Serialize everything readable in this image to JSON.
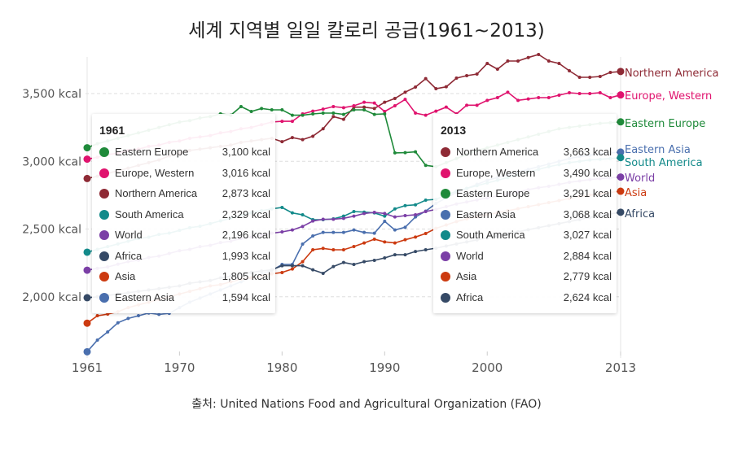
{
  "title": "세계 지역별 일일 칼로리 공급(1961~2013)",
  "source": "출처: United Nations Food and Agricultural Organization (FAO)",
  "chart_data": {
    "type": "line",
    "title": "세계 지역별 일일 칼로리 공급(1961~2013)",
    "xlabel": "",
    "ylabel": "",
    "x_start": 1961,
    "x_end": 2013,
    "x_ticks": [
      "1961",
      "1970",
      "1980",
      "1990",
      "2000",
      "2013"
    ],
    "y_ticks": [
      "2,000 kcal",
      "2,500 kcal",
      "3,000 kcal",
      "3,500 kcal"
    ],
    "y_tick_values": [
      2000,
      2500,
      3000,
      3500
    ],
    "grid": "horizontal dashed",
    "legend": "end-of-line labels",
    "series": [
      {
        "name": "Northern America",
        "color": "#8e2a35",
        "values": [
          2873,
          2890,
          2910,
          2930,
          2950,
          2970,
          2990,
          3010,
          3040,
          3060,
          3080,
          3090,
          3100,
          3110,
          3120,
          3140,
          3150,
          3160,
          3170,
          3145,
          3175,
          3160,
          3185,
          3240,
          3330,
          3310,
          3400,
          3400,
          3390,
          3436,
          3464,
          3510,
          3548,
          3610,
          3536,
          3550,
          3614,
          3632,
          3644,
          3722,
          3680,
          3740,
          3740,
          3766,
          3788,
          3740,
          3722,
          3668,
          3620,
          3620,
          3626,
          3656,
          3663
        ]
      },
      {
        "name": "Europe, Western",
        "color": "#e0136e",
        "values": [
          3016,
          3030,
          3050,
          3060,
          3080,
          3090,
          3110,
          3120,
          3140,
          3150,
          3170,
          3180,
          3190,
          3210,
          3220,
          3240,
          3250,
          3270,
          3290,
          3295,
          3295,
          3350,
          3370,
          3385,
          3404,
          3396,
          3410,
          3436,
          3430,
          3368,
          3410,
          3457,
          3356,
          3340,
          3370,
          3400,
          3350,
          3414,
          3414,
          3450,
          3470,
          3510,
          3450,
          3460,
          3470,
          3470,
          3488,
          3506,
          3500,
          3500,
          3506,
          3470,
          3490
        ]
      },
      {
        "name": "Eastern Europe",
        "color": "#1f8a3a",
        "values": [
          3100,
          3130,
          3150,
          3170,
          3190,
          3210,
          3230,
          3250,
          3270,
          3290,
          3300,
          3320,
          3330,
          3350,
          3340,
          3404,
          3368,
          3390,
          3380,
          3380,
          3340,
          3340,
          3350,
          3356,
          3356,
          3346,
          3380,
          3380,
          3346,
          3350,
          3062,
          3064,
          3070,
          2970,
          2960,
          2990,
          3020,
          3050,
          3080,
          3100,
          3120,
          3140,
          3160,
          3180,
          3200,
          3220,
          3240,
          3250,
          3260,
          3270,
          3280,
          3285,
          3291
        ]
      },
      {
        "name": "Eastern Asia",
        "color": "#4a6fae",
        "values": [
          1594,
          1680,
          1740,
          1808,
          1840,
          1860,
          1880,
          1870,
          1878,
          1920,
          1960,
          1990,
          2020,
          2050,
          2080,
          2110,
          2140,
          2170,
          2193,
          2239,
          2239,
          2389,
          2449,
          2475,
          2475,
          2475,
          2493,
          2475,
          2469,
          2557,
          2493,
          2513,
          2589,
          2632,
          2689,
          2730,
          2770,
          2800,
          2830,
          2860,
          2880,
          2900,
          2920,
          2940,
          2960,
          2980,
          3000,
          3020,
          3035,
          3045,
          3055,
          3062,
          3068
        ]
      },
      {
        "name": "South America",
        "color": "#138a8a",
        "values": [
          2329,
          2350,
          2370,
          2390,
          2410,
          2430,
          2440,
          2460,
          2470,
          2490,
          2510,
          2520,
          2540,
          2560,
          2580,
          2600,
          2620,
          2635,
          2649,
          2659,
          2619,
          2605,
          2569,
          2569,
          2575,
          2595,
          2629,
          2625,
          2619,
          2595,
          2649,
          2673,
          2679,
          2713,
          2719,
          2750,
          2780,
          2800,
          2820,
          2840,
          2860,
          2880,
          2900,
          2920,
          2940,
          2960,
          2975,
          2990,
          3000,
          3010,
          3015,
          3020,
          3027
        ]
      },
      {
        "name": "World",
        "color": "#7b3fa6",
        "values": [
          2196,
          2210,
          2220,
          2240,
          2260,
          2270,
          2290,
          2300,
          2320,
          2340,
          2350,
          2370,
          2380,
          2400,
          2410,
          2430,
          2440,
          2455,
          2469,
          2479,
          2493,
          2519,
          2559,
          2572,
          2572,
          2579,
          2595,
          2615,
          2623,
          2615,
          2589,
          2599,
          2605,
          2629,
          2645,
          2665,
          2685,
          2700,
          2715,
          2730,
          2745,
          2760,
          2775,
          2790,
          2805,
          2815,
          2830,
          2845,
          2855,
          2865,
          2872,
          2878,
          2884
        ]
      },
      {
        "name": "Asia",
        "color": "#cc3a10",
        "values": [
          1805,
          1860,
          1872,
          1890,
          1920,
          1940,
          1960,
          1980,
          2000,
          2020,
          2040,
          2060,
          2080,
          2090,
          2110,
          2130,
          2140,
          2155,
          2169,
          2179,
          2205,
          2259,
          2347,
          2357,
          2347,
          2347,
          2371,
          2397,
          2425,
          2405,
          2397,
          2421,
          2441,
          2467,
          2505,
          2530,
          2555,
          2575,
          2590,
          2605,
          2620,
          2635,
          2650,
          2665,
          2680,
          2695,
          2710,
          2725,
          2740,
          2750,
          2760,
          2770,
          2779
        ]
      },
      {
        "name": "Africa",
        "color": "#364a66",
        "values": [
          1993,
          2000,
          2010,
          2020,
          2030,
          2040,
          2050,
          2060,
          2070,
          2080,
          2100,
          2110,
          2120,
          2140,
          2150,
          2165,
          2180,
          2190,
          2199,
          2229,
          2229,
          2229,
          2199,
          2173,
          2223,
          2253,
          2239,
          2259,
          2269,
          2287,
          2310,
          2310,
          2334,
          2347,
          2359,
          2375,
          2390,
          2405,
          2420,
          2435,
          2450,
          2465,
          2480,
          2495,
          2510,
          2525,
          2540,
          2555,
          2570,
          2585,
          2600,
          2612,
          2624
        ]
      }
    ]
  },
  "tooltips": [
    {
      "year": "1961",
      "rows": [
        {
          "name": "Eastern Europe",
          "value": "3,100 kcal",
          "color": "#1f8a3a"
        },
        {
          "name": "Europe, Western",
          "value": "3,016 kcal",
          "color": "#e0136e"
        },
        {
          "name": "Northern America",
          "value": "2,873 kcal",
          "color": "#8e2a35"
        },
        {
          "name": "South America",
          "value": "2,329 kcal",
          "color": "#138a8a"
        },
        {
          "name": "World",
          "value": "2,196 kcal",
          "color": "#7b3fa6"
        },
        {
          "name": "Africa",
          "value": "1,993 kcal",
          "color": "#364a66"
        },
        {
          "name": "Asia",
          "value": "1,805 kcal",
          "color": "#cc3a10"
        },
        {
          "name": "Eastern Asia",
          "value": "1,594 kcal",
          "color": "#4a6fae"
        }
      ]
    },
    {
      "year": "2013",
      "rows": [
        {
          "name": "Northern America",
          "value": "3,663 kcal",
          "color": "#8e2a35"
        },
        {
          "name": "Europe, Western",
          "value": "3,490 kcal",
          "color": "#e0136e"
        },
        {
          "name": "Eastern Europe",
          "value": "3,291 kcal",
          "color": "#1f8a3a"
        },
        {
          "name": "Eastern Asia",
          "value": "3,068 kcal",
          "color": "#4a6fae"
        },
        {
          "name": "South America",
          "value": "3,027 kcal",
          "color": "#138a8a"
        },
        {
          "name": "World",
          "value": "2,884 kcal",
          "color": "#7b3fa6"
        },
        {
          "name": "Asia",
          "value": "2,779 kcal",
          "color": "#cc3a10"
        },
        {
          "name": "Africa",
          "value": "2,624 kcal",
          "color": "#364a66"
        }
      ]
    }
  ]
}
